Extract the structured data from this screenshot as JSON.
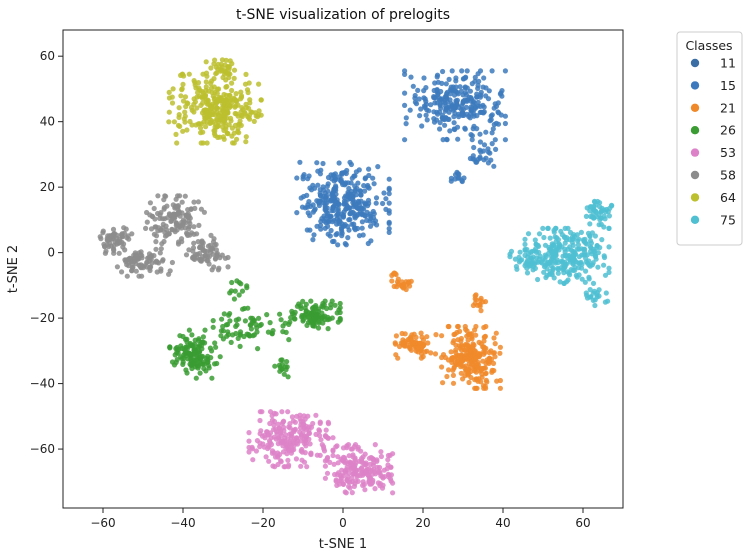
{
  "chart_data": {
    "type": "scatter",
    "title": "t-SNE visualization of prelogits",
    "xlabel": "t-SNE 1",
    "ylabel": "t-SNE 2",
    "xlim": [
      -70,
      70
    ],
    "ylim": [
      -78,
      68
    ],
    "xticks": [
      -60,
      -40,
      -20,
      0,
      20,
      40,
      60
    ],
    "yticks": [
      -60,
      -40,
      -20,
      0,
      20,
      40,
      60
    ],
    "grid": false,
    "legend_title": "Classes",
    "legend_position": "outside top-right",
    "series": [
      {
        "name": "11",
        "color": "#3b6ea5",
        "clusters": []
      },
      {
        "name": "15",
        "color": "#3c7abd",
        "clusters": [
          {
            "cx": 0,
            "cy": 15,
            "rx": 11,
            "ry": 12,
            "n": 330
          },
          {
            "cx": 28,
            "cy": 45,
            "rx": 12,
            "ry": 10,
            "n": 260
          },
          {
            "cx": 35,
            "cy": 30,
            "rx": 3,
            "ry": 4,
            "n": 25
          },
          {
            "cx": 29,
            "cy": 23,
            "rx": 2.5,
            "ry": 1.5,
            "n": 12
          }
        ]
      },
      {
        "name": "21",
        "color": "#f0892a",
        "clusters": [
          {
            "cx": 32,
            "cy": -32,
            "rx": 7,
            "ry": 9,
            "n": 230
          },
          {
            "cx": 18,
            "cy": -28,
            "rx": 5,
            "ry": 4,
            "n": 70
          },
          {
            "cx": 15,
            "cy": -9,
            "rx": 3,
            "ry": 3,
            "n": 25
          },
          {
            "cx": 34,
            "cy": -16,
            "rx": 2,
            "ry": 3,
            "n": 15
          }
        ]
      },
      {
        "name": "26",
        "color": "#3a9c32",
        "clusters": [
          {
            "cx": -7,
            "cy": -19,
            "rx": 6,
            "ry": 4,
            "n": 110
          },
          {
            "cx": -37,
            "cy": -31,
            "rx": 6,
            "ry": 7,
            "n": 130
          },
          {
            "cx": -23,
            "cy": -23,
            "rx": 9,
            "ry": 6,
            "n": 70
          },
          {
            "cx": -15,
            "cy": -35,
            "rx": 2,
            "ry": 3,
            "n": 15
          },
          {
            "cx": -26,
            "cy": -11,
            "rx": 3,
            "ry": 3,
            "n": 12
          }
        ]
      },
      {
        "name": "53",
        "color": "#dd82c8",
        "clusters": [
          {
            "cx": -13,
            "cy": -57,
            "rx": 10,
            "ry": 8,
            "n": 210
          },
          {
            "cx": 4,
            "cy": -66,
            "rx": 8,
            "ry": 7,
            "n": 190
          }
        ]
      },
      {
        "name": "58",
        "color": "#8c8c8c",
        "clusters": [
          {
            "cx": -42,
            "cy": 10,
            "rx": 7,
            "ry": 7,
            "n": 130
          },
          {
            "cx": -57,
            "cy": 4,
            "rx": 4,
            "ry": 4,
            "n": 60
          },
          {
            "cx": -50,
            "cy": -3,
            "rx": 7,
            "ry": 4,
            "n": 80
          },
          {
            "cx": -34,
            "cy": 0,
            "rx": 5,
            "ry": 5,
            "n": 70
          }
        ]
      },
      {
        "name": "64",
        "color": "#bcbf2e",
        "clusters": [
          {
            "cx": -32,
            "cy": 44,
            "rx": 11,
            "ry": 10,
            "n": 300
          },
          {
            "cx": -30,
            "cy": 57,
            "rx": 4,
            "ry": 3,
            "n": 30
          }
        ]
      },
      {
        "name": "75",
        "color": "#4fbfd2",
        "clusters": [
          {
            "cx": 56,
            "cy": -1,
            "rx": 10,
            "ry": 8,
            "n": 250
          },
          {
            "cx": 64,
            "cy": 12,
            "rx": 3,
            "ry": 5,
            "n": 45
          },
          {
            "cx": 47,
            "cy": -2,
            "rx": 5,
            "ry": 4,
            "n": 40
          },
          {
            "cx": 63,
            "cy": -13,
            "rx": 3,
            "ry": 3,
            "n": 20
          }
        ]
      }
    ]
  }
}
